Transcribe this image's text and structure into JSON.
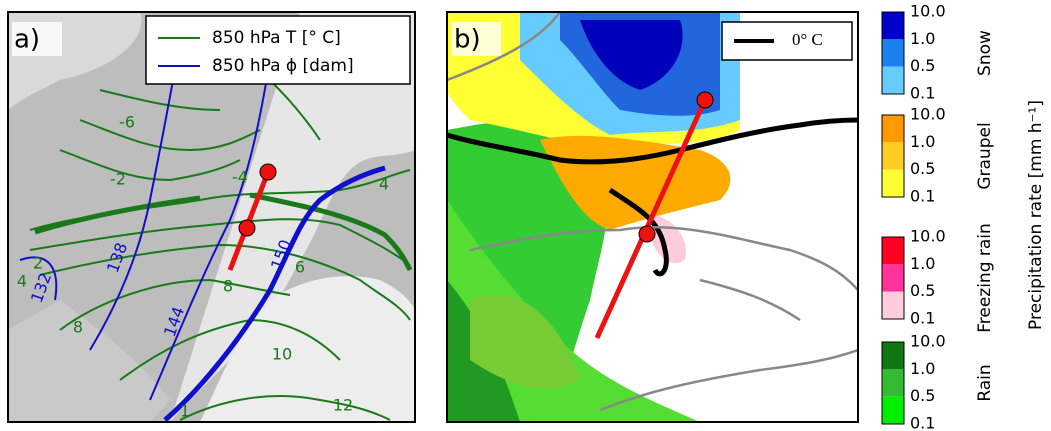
{
  "panel_a": {
    "label": "a)",
    "legend": [
      "850 hPa T [° C]",
      "850 hPa ϕ [dam]"
    ],
    "temperature_labels": [
      -6,
      -2,
      -4,
      4,
      2,
      4,
      8,
      8,
      6,
      10,
      12,
      1
    ],
    "geopotential_labels": [
      132,
      138,
      144,
      150
    ]
  },
  "panel_b": {
    "label": "b)",
    "legend": "0° C"
  },
  "colorbar": {
    "ticks": [
      "10.0",
      "1.0",
      "0.5",
      "0.1"
    ],
    "categories": [
      "Snow",
      "Graupel",
      "Freezing rain",
      "Rain"
    ],
    "label": "Precipitation rate [mm h⁻¹]"
  }
}
